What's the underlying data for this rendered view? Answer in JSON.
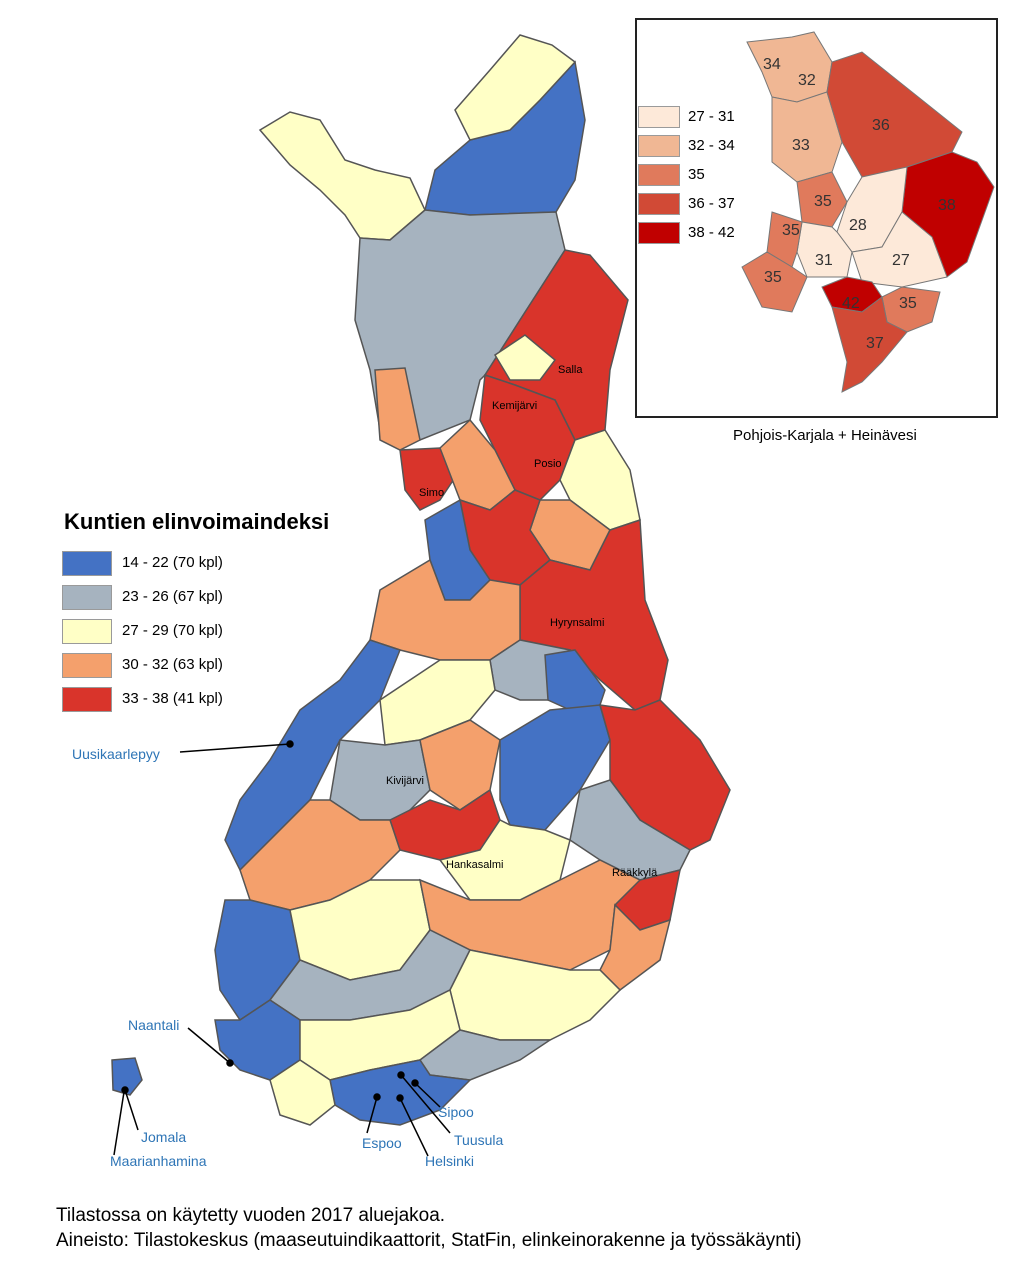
{
  "legend": {
    "title": "Kuntien elinvoimaindeksi",
    "classes": [
      {
        "label": "14 - 22 (70 kpl)",
        "color": "#4472c4"
      },
      {
        "label": "23 - 26 (67 kpl)",
        "color": "#a6b3bf"
      },
      {
        "label": "27 - 29 (70 kpl)",
        "color": "#ffffc6"
      },
      {
        "label": "30 - 32 (63 kpl)",
        "color": "#f4a06c"
      },
      {
        "label": "33 - 38 (41 kpl)",
        "color": "#d9342b"
      }
    ]
  },
  "inset": {
    "caption": "Pohjois-Karjala + Heinävesi",
    "classes": [
      {
        "label": "27 - 31",
        "color": "#fde9d9"
      },
      {
        "label": "32 - 34",
        "color": "#f0b794"
      },
      {
        "label": "35",
        "color": "#e07a5c"
      },
      {
        "label": "36 - 37",
        "color": "#d14a36"
      },
      {
        "label": "38 - 42",
        "color": "#c00000"
      }
    ],
    "values": [
      "34",
      "32",
      "33",
      "36",
      "35",
      "28",
      "38",
      "35",
      "31",
      "27",
      "35",
      "42",
      "35",
      "37"
    ]
  },
  "places": [
    "Salla",
    "Kemijärvi",
    "Posio",
    "Simo",
    "Hyrynsalmi",
    "Kivijärvi",
    "Hankasalmi",
    "Rääkkylä"
  ],
  "callouts": [
    "Uusikaarlepyy",
    "Naantali",
    "Jomala",
    "Maarianhamina",
    "Espoo",
    "Helsinki",
    "Sipoo",
    "Tuusula"
  ],
  "footer": {
    "line1": "Tilastossa on käytetty vuoden 2017 aluejakoa.",
    "line2": "Aineisto: Tilastokeskus (maaseutuindikaattorit, StatFin, elinkeinorakenne ja työssäkäynti)"
  }
}
